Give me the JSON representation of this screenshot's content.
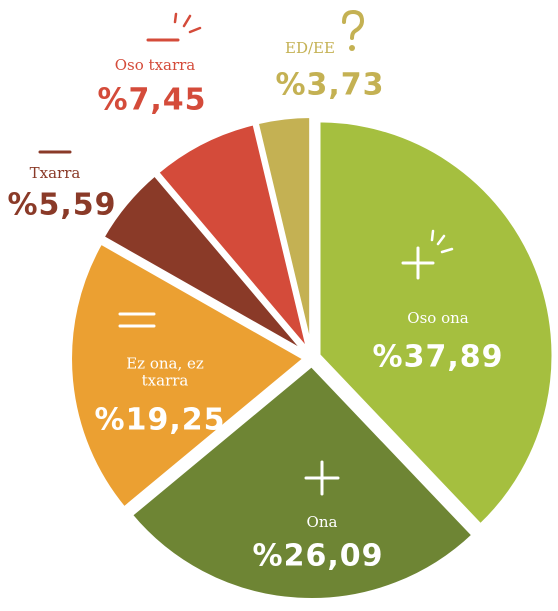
{
  "chart_data": {
    "type": "pie",
    "categories": [
      "Oso ona",
      "Ona",
      "Ez ona, ez txarra",
      "Txarra",
      "Oso txarra",
      "ED/EE"
    ],
    "values": [
      37.89,
      26.09,
      19.25,
      5.59,
      7.45,
      3.73
    ],
    "value_labels": [
      "%37,89",
      "%26,09",
      "%19,25",
      "%5,59",
      "%7,45",
      "%3,73"
    ],
    "colors": [
      "#a5bf3f",
      "#6e8534",
      "#eba032",
      "#8a3a28",
      "#d44b3a",
      "#c4b153"
    ]
  }
}
